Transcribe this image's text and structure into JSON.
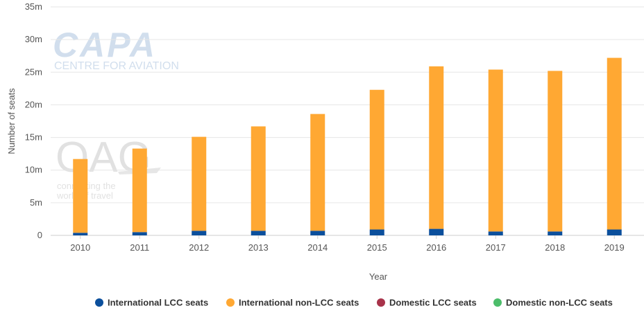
{
  "chart_data": {
    "type": "bar",
    "stacked": true,
    "categories": [
      "2010",
      "2011",
      "2012",
      "2013",
      "2014",
      "2015",
      "2016",
      "2017",
      "2018",
      "2019"
    ],
    "series": [
      {
        "name": "International LCC seats",
        "color": "#0b4f9c",
        "values": [
          0.4,
          0.5,
          0.7,
          0.7,
          0.7,
          0.9,
          1.0,
          0.6,
          0.6,
          0.9
        ]
      },
      {
        "name": "International non-LCC seats",
        "color": "#ffa833",
        "values": [
          11.3,
          12.8,
          14.4,
          16.0,
          17.9,
          21.4,
          24.9,
          24.8,
          24.6,
          26.3
        ]
      },
      {
        "name": "Domestic LCC seats",
        "color": "#a8334a",
        "values": [
          0,
          0,
          0,
          0,
          0,
          0,
          0,
          0,
          0,
          0
        ]
      },
      {
        "name": "Domestic non-LCC seats",
        "color": "#4cbd6a",
        "values": [
          0,
          0,
          0,
          0,
          0,
          0,
          0,
          0,
          0,
          0
        ]
      }
    ],
    "ylim": [
      0,
      35
    ],
    "yticks": [
      0,
      5,
      10,
      15,
      20,
      25,
      30,
      35
    ],
    "ytick_labels": [
      "0",
      "5m",
      "10m",
      "15m",
      "20m",
      "25m",
      "30m",
      "35m"
    ],
    "xlabel": "Year",
    "ylabel": "Number of seats",
    "grid": true,
    "legend_position": "bottom"
  },
  "watermarks": {
    "capa_logo": "CAPA",
    "capa_tagline": "CENTRE FOR AVIATION",
    "oag_logo": "OAG",
    "oag_tagline_1": "connecting the",
    "oag_tagline_2": "world of travel"
  }
}
